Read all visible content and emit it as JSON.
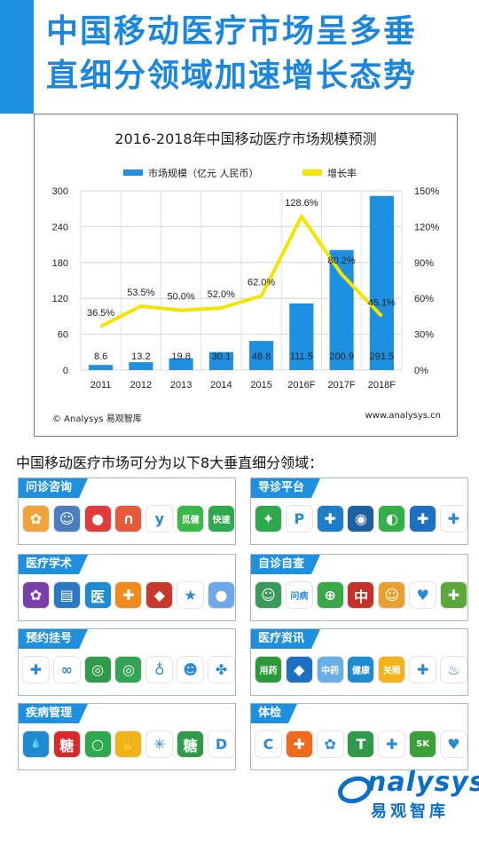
{
  "header": {
    "title_line1": "中国移动医疗市场呈多垂",
    "title_line2": "直细分领域加速增长态势"
  },
  "chart_data": {
    "type": "bar",
    "title": "2016-2018年中国移动医疗市场规模预测",
    "categories": [
      "2011",
      "2012",
      "2013",
      "2014",
      "2015",
      "2016F",
      "2017F",
      "2018F"
    ],
    "series": [
      {
        "name": "市场规模（亿元 人民币）",
        "type": "bar",
        "axis": "left",
        "values": [
          8.6,
          13.2,
          19.8,
          30.1,
          48.8,
          111.5,
          200.9,
          291.5
        ],
        "color": "#1e90e0"
      },
      {
        "name": "增长率",
        "type": "line",
        "axis": "right",
        "values": [
          36.5,
          53.5,
          50.0,
          52.0,
          62.0,
          128.6,
          80.2,
          45.1
        ],
        "color": "#f2e600"
      }
    ],
    "bar_labels": [
      "8.6",
      "13.2",
      "19.8",
      "30.1",
      "48.8",
      "111.5",
      "200.9",
      "291.5"
    ],
    "line_labels": [
      "36.5%",
      "53.5%",
      "50.0%",
      "52.0%",
      "62.0%",
      "128.6%",
      "80.2%",
      "45.1%"
    ],
    "ylim_left": [
      0,
      300
    ],
    "yticks_left": [
      "0",
      "60",
      "120",
      "180",
      "240",
      "300"
    ],
    "ylim_right": [
      0,
      150
    ],
    "yticks_right": [
      "0%",
      "30%",
      "60%",
      "90%",
      "120%",
      "150%"
    ],
    "legend_position": "top-center",
    "grid": true,
    "source_left": "© Analysys 易观智库",
    "source_right": "www.analysys.cn"
  },
  "intro_text": "中国移动医疗市场可分为以下8大垂直细分领域：",
  "categories": [
    {
      "label": "问诊咨询",
      "icons": [
        {
          "name": "flower-app-icon",
          "color": "#f0a33a",
          "glyph": "✿"
        },
        {
          "name": "doctor-cartoon-app-icon",
          "color": "#4a7ec0",
          "glyph": "☺"
        },
        {
          "name": "chat-bubble-app-icon",
          "color": "#e23b3b",
          "glyph": "●"
        },
        {
          "name": "n-logo-app-icon",
          "color": "#e65a3c",
          "glyph": "∩"
        },
        {
          "name": "y-logo-app-icon",
          "color": "#ffffff",
          "glyph": "y"
        },
        {
          "name": "mijian-app-icon",
          "color": "#3cb84a",
          "glyph": "觅健"
        },
        {
          "name": "kuaisu-wenyisheng-app-icon",
          "color": "#2fa84e",
          "glyph": "快速"
        }
      ]
    },
    {
      "label": "导诊平台",
      "icons": [
        {
          "name": "sprout-app-icon",
          "color": "#2fa84e",
          "glyph": "✦"
        },
        {
          "name": "p-logo-app-icon",
          "color": "#ffffff",
          "glyph": "P"
        },
        {
          "name": "cross-tile-app-icon",
          "color": "#1e7ec8",
          "glyph": "✚"
        },
        {
          "name": "hospital-seal-app-icon",
          "color": "#1d5fa0",
          "glyph": "◉"
        },
        {
          "name": "green-circle-app-icon",
          "color": "#34b04a",
          "glyph": "◐"
        },
        {
          "name": "blue-cross-app-icon",
          "color": "#1e6fc0",
          "glyph": "✚"
        },
        {
          "name": "cross-swirl-app-icon",
          "color": "#ffffff",
          "glyph": "✚"
        }
      ]
    },
    {
      "label": "医疗学术",
      "icons": [
        {
          "name": "purple-flower-app-icon",
          "color": "#7a3fa8",
          "glyph": "✿"
        },
        {
          "name": "book-app-icon",
          "color": "#2a78c0",
          "glyph": "▤"
        },
        {
          "name": "yi-char-app-icon",
          "color": "#1e8ad0",
          "glyph": "医"
        },
        {
          "name": "orange-cross-app-icon",
          "color": "#f08a1c",
          "glyph": "✚"
        },
        {
          "name": "shield-app-icon",
          "color": "#c8382e",
          "glyph": "◆"
        },
        {
          "name": "star-badge-app-icon",
          "color": "#ffffff",
          "glyph": "★"
        },
        {
          "name": "blob-app-icon",
          "color": "#6fa8e8",
          "glyph": "●"
        }
      ]
    },
    {
      "label": "自诊自查",
      "icons": [
        {
          "name": "nurse-app-icon",
          "color": "#3a9a5a",
          "glyph": "☺"
        },
        {
          "name": "wenbing-app-icon",
          "color": "#ffffff",
          "glyph": "问病"
        },
        {
          "name": "green-plus-app-icon",
          "color": "#3aa848",
          "glyph": "⊕"
        },
        {
          "name": "zhongyi-app-icon",
          "color": "#c8302a",
          "glyph": "中"
        },
        {
          "name": "cartoon-app-icon",
          "color": "#e9a030",
          "glyph": "☺"
        },
        {
          "name": "heart-plus-app-icon",
          "color": "#ffffff",
          "glyph": "♥"
        },
        {
          "name": "leaf-cross-app-icon",
          "color": "#5aa83a",
          "glyph": "✚"
        }
      ]
    },
    {
      "label": "预约挂号",
      "icons": [
        {
          "name": "teal-cross-app-icon",
          "color": "#ffffff",
          "glyph": "✚"
        },
        {
          "name": "infinity-app-icon",
          "color": "#ffffff",
          "glyph": "∞"
        },
        {
          "name": "green-ring-app-icon",
          "color": "#2f9a4a",
          "glyph": "◎"
        },
        {
          "name": "spiral-app-icon",
          "color": "#33a455",
          "glyph": "◎"
        },
        {
          "name": "stethoscope-app-icon",
          "color": "#ffffff",
          "glyph": "♁"
        },
        {
          "name": "green-face-app-icon",
          "color": "#ffffff",
          "glyph": "☻"
        },
        {
          "name": "pinwheel-app-icon",
          "color": "#ffffff",
          "glyph": "✤"
        }
      ]
    },
    {
      "label": "医疗资讯",
      "icons": [
        {
          "name": "yongyao-anquan-app-icon",
          "color": "#2c9a3a",
          "glyph": "用药"
        },
        {
          "name": "blue-pin-app-icon",
          "color": "#1e6fc0",
          "glyph": "◆"
        },
        {
          "name": "zhongyao-app-icon",
          "color": "#6aaee8",
          "glyph": "中药"
        },
        {
          "name": "jiankang-app-icon",
          "color": "#1e8ad0",
          "glyph": "健康"
        },
        {
          "name": "guanzhao-app-icon",
          "color": "#f3b21a",
          "glyph": "关照"
        },
        {
          "name": "blue-plus-app-icon",
          "color": "#ffffff",
          "glyph": "✚"
        },
        {
          "name": "herb-bowl-app-icon",
          "color": "#ffffff",
          "glyph": "♨"
        }
      ]
    },
    {
      "label": "疾病管理",
      "icons": [
        {
          "name": "water-drop-app-icon",
          "color": "#1e8ad0",
          "glyph": "💧"
        },
        {
          "name": "tang-red-app-icon",
          "color": "#d8292b",
          "glyph": "糖"
        },
        {
          "name": "green-o-app-icon",
          "color": "#2fa84e",
          "glyph": "○"
        },
        {
          "name": "hand-app-icon",
          "color": "#f0b41a",
          "glyph": "✋"
        },
        {
          "name": "colorful-star-app-icon",
          "color": "#ffffff",
          "glyph": "✳"
        },
        {
          "name": "tang-green-app-icon",
          "color": "#2f9a4a",
          "glyph": "糖"
        },
        {
          "name": "d-nurse-app-icon",
          "color": "#ffffff",
          "glyph": "D"
        }
      ]
    },
    {
      "label": "体检",
      "icons": [
        {
          "name": "blue-c-app-icon",
          "color": "#ffffff",
          "glyph": "C"
        },
        {
          "name": "orange-cross-circle-app-icon",
          "color": "#f06a1c",
          "glyph": "✚"
        },
        {
          "name": "health-figure-app-icon",
          "color": "#ffffff",
          "glyph": "✿"
        },
        {
          "name": "t-logo-app-icon",
          "color": "#2f9a4a",
          "glyph": "T"
        },
        {
          "name": "colorful-plus-app-icon",
          "color": "#ffffff",
          "glyph": "✚"
        },
        {
          "name": "sk-logo-app-icon",
          "color": "#3aa03a",
          "glyph": "SK"
        },
        {
          "name": "heart-badge-app-icon",
          "color": "#ffffff",
          "glyph": "♥"
        }
      ]
    }
  ],
  "brand": {
    "name_en": "nalysys",
    "name_cn": "易观智库"
  }
}
